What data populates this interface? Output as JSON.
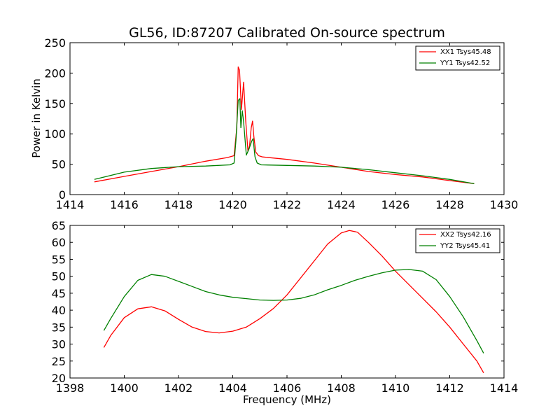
{
  "chart_data": [
    {
      "type": "line",
      "title": "GL56, ID:87207 Calibrated On-source spectrum",
      "xlabel": "",
      "ylabel": "Power in Kelvin",
      "xlim": [
        1414,
        1430
      ],
      "ylim": [
        0,
        250
      ],
      "xticks": [
        1414,
        1416,
        1418,
        1420,
        1422,
        1424,
        1426,
        1428,
        1430
      ],
      "yticks": [
        0,
        50,
        100,
        150,
        200,
        250
      ],
      "legend_position": "top-right",
      "series": [
        {
          "name": "XX1 Tsys45.48",
          "color": "#ff0000",
          "x": [
            1414.9,
            1416,
            1417,
            1418,
            1419,
            1419.8,
            1420.05,
            1420.15,
            1420.2,
            1420.25,
            1420.32,
            1420.4,
            1420.48,
            1420.56,
            1420.62,
            1420.68,
            1420.73,
            1420.78,
            1420.85,
            1420.95,
            1421.1,
            1422,
            1423,
            1424,
            1425,
            1426,
            1427,
            1428,
            1428.9
          ],
          "y": [
            21,
            30,
            38,
            46,
            55,
            61,
            64,
            110,
            210,
            205,
            140,
            185,
            120,
            72,
            80,
            110,
            121,
            95,
            70,
            64,
            62,
            58,
            52,
            45,
            38,
            33,
            29,
            23,
            18
          ]
        },
        {
          "name": "YY1 Tsys42.52",
          "color": "#008000",
          "x": [
            1414.9,
            1416,
            1417,
            1418,
            1419,
            1419.9,
            1420.05,
            1420.12,
            1420.2,
            1420.26,
            1420.3,
            1420.35,
            1420.4,
            1420.5,
            1420.6,
            1420.7,
            1420.75,
            1420.82,
            1420.9,
            1421.05,
            1422,
            1423,
            1424,
            1425,
            1426,
            1427,
            1428,
            1428.9
          ],
          "y": [
            25,
            37,
            43,
            46,
            47,
            49,
            52,
            90,
            155,
            158,
            110,
            138,
            120,
            65,
            75,
            88,
            92,
            62,
            52,
            49,
            48,
            47,
            45,
            41,
            36,
            31,
            25,
            18
          ]
        }
      ]
    },
    {
      "type": "line",
      "title": "",
      "xlabel": "Frequency (MHz)",
      "ylabel": "",
      "xlim": [
        1398,
        1414
      ],
      "ylim": [
        20,
        65
      ],
      "xticks": [
        1398,
        1400,
        1402,
        1404,
        1406,
        1408,
        1410,
        1412,
        1414
      ],
      "yticks": [
        20,
        25,
        30,
        35,
        40,
        45,
        50,
        55,
        60,
        65
      ],
      "legend_position": "top-right",
      "series": [
        {
          "name": "XX2 Tsys42.16",
          "color": "#ff0000",
          "x": [
            1399.25,
            1399.5,
            1400,
            1400.5,
            1401,
            1401.5,
            1402,
            1402.5,
            1403,
            1403.5,
            1404,
            1404.5,
            1405,
            1405.5,
            1406,
            1406.5,
            1407,
            1407.5,
            1408,
            1408.3,
            1408.6,
            1409,
            1409.5,
            1410,
            1410.5,
            1411,
            1411.5,
            1412,
            1412.5,
            1413,
            1413.25
          ],
          "y": [
            29,
            32.5,
            37.8,
            40.4,
            41,
            39.8,
            37.3,
            35,
            33.7,
            33.3,
            33.8,
            35,
            37.5,
            40.5,
            44.5,
            49.5,
            54.5,
            59.5,
            62.8,
            63.5,
            63,
            60,
            56,
            51.5,
            47.5,
            43.5,
            39.5,
            35,
            30,
            25,
            21.5
          ]
        },
        {
          "name": "YY2 Tsys45.41",
          "color": "#008000",
          "x": [
            1399.25,
            1399.5,
            1400,
            1400.5,
            1401,
            1401.5,
            1402,
            1402.5,
            1403,
            1403.5,
            1404,
            1404.5,
            1405,
            1405.5,
            1406,
            1406.5,
            1407,
            1407.5,
            1408,
            1408.5,
            1409,
            1409.5,
            1410,
            1410.5,
            1411,
            1411.5,
            1412,
            1412.5,
            1413,
            1413.25
          ],
          "y": [
            34,
            37.5,
            44,
            48.8,
            50.5,
            50,
            48.5,
            47,
            45.5,
            44.5,
            43.8,
            43.4,
            43,
            42.9,
            43,
            43.5,
            44.5,
            46,
            47.3,
            48.8,
            50,
            51,
            51.8,
            52,
            51.5,
            49,
            44,
            38,
            31,
            27.3
          ]
        }
      ]
    }
  ]
}
